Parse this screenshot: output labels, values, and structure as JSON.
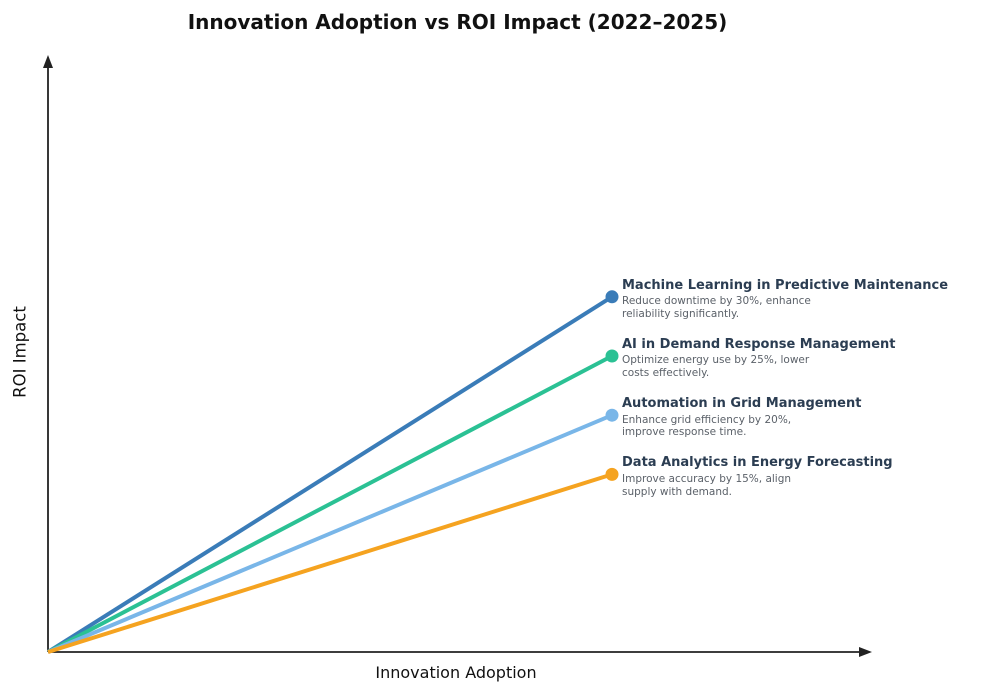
{
  "chart_data": {
    "type": "line",
    "title": "Innovation Adoption vs ROI Impact (2022–2025)",
    "xlabel": "Innovation Adoption",
    "ylabel": "ROI Impact",
    "legend": "none",
    "axis": {
      "color": "#222222",
      "arrows": true,
      "ticks": false,
      "grid": false,
      "ylim": [
        0,
        50
      ],
      "value_unit": "%"
    },
    "text_colors": {
      "title": "#111111",
      "axis_label": "#111111",
      "series_title": "#2B3D52",
      "series_desc": "#5B6169"
    },
    "series": [
      {
        "name": "Machine Learning in Predictive Maintenance",
        "description": "Reduce downtime by 30%, enhance\nreliability significantly.",
        "value": 30,
        "color": "#3A7CB8"
      },
      {
        "name": "AI in Demand Response Management",
        "description": "Optimize energy use by 25%, lower\ncosts effectively.",
        "value": 25,
        "color": "#2BC194"
      },
      {
        "name": "Automation in Grid Management",
        "description": "Enhance grid efficiency by 20%,\nimprove response time.",
        "value": 20,
        "color": "#79B6E8"
      },
      {
        "name": "Data Analytics in Energy Forecasting",
        "description": "Improve accuracy by 15%, align\nsupply with demand.",
        "value": 15,
        "color": "#F5A320"
      }
    ]
  }
}
